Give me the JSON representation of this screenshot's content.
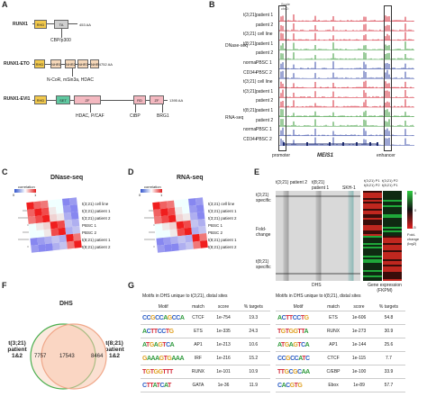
{
  "panels": {
    "A": "A",
    "B": "B",
    "C": "C",
    "D": "D",
    "E": "E",
    "F": "F",
    "G": "G"
  },
  "panelA": {
    "proteins": [
      {
        "name": "RUNX1",
        "length": "453 AA",
        "domains": [
          "RHD",
          "TA"
        ],
        "notes": [
          "CBP/p300"
        ]
      },
      {
        "name": "RUNX1-ETO",
        "length": "752 AA",
        "domains": [
          "RHD",
          "NHR1",
          "NHR2",
          "NHR3",
          "NHR4"
        ],
        "notes": [
          "N-CoR, mSin3a, HDAC"
        ]
      },
      {
        "name": "RUNX1-EVI1",
        "length": "1395 AA",
        "domains": [
          "RHD",
          "SET",
          "ZF",
          "RD",
          "ZF"
        ],
        "notes": [
          "HDAC, P/CAF",
          "CtBP",
          "BRG1"
        ]
      }
    ]
  },
  "panelB": {
    "header": [
      "Scale",
      "chr2:",
      "hg19"
    ],
    "dnase_label": "DNase-seq",
    "rna_label": "RNA-seq",
    "tracks": [
      {
        "group": "t(3;21)",
        "label": "patient 1",
        "color": "#d42b3a"
      },
      {
        "group": "",
        "label": "patient 2",
        "color": "#d42b3a"
      },
      {
        "group": "t(3;21) cell line",
        "label": "",
        "color": "#d42b3a"
      },
      {
        "group": "t(8;21)",
        "label": "patient 1",
        "color": "#3a9a3a"
      },
      {
        "group": "",
        "label": "patient 2",
        "color": "#3a9a3a"
      },
      {
        "group": "normal",
        "label": "PBSC 1",
        "color": "#3b4ea8"
      },
      {
        "group": "CD34+",
        "label": "PBSC 2",
        "color": "#3b4ea8"
      },
      {
        "group": "t(3;21) cell line",
        "label": "",
        "color": "#d42b3a"
      },
      {
        "group": "t(3;21)",
        "label": "patient 1",
        "color": "#d42b3a"
      },
      {
        "group": "",
        "label": "patient 2",
        "color": "#d42b3a"
      },
      {
        "group": "t(8;21)",
        "label": "patient 1",
        "color": "#3a9a3a"
      },
      {
        "group": "",
        "label": "patient 2",
        "color": "#3a9a3a"
      },
      {
        "group": "normal",
        "label": "PBSC 1",
        "color": "#3b4ea8"
      },
      {
        "group": "CD34+",
        "label": "PBSC 2",
        "color": "#3b4ea8"
      }
    ],
    "gene": "MEIS1",
    "promoter": "promoter",
    "enhancer": "enhancer"
  },
  "panelC": {
    "title": "DNase-seq",
    "legend": "correlation",
    "legend_ticks": [
      "0",
      "1"
    ],
    "rows": [
      "t(3;21) cell line",
      "t(3;21) patient 1",
      "t(3;21) patient 2",
      "PBSC 1",
      "PBSC 2",
      "t(8;21) patient 1",
      "t(8;21) patient 2"
    ],
    "cols": [
      "t(3;21) cell line",
      "t(3;21) patient 1",
      "t(3;21) patient 2",
      "PBSC 1",
      "PBSC 2",
      "t(8;21) patient 1",
      "t(8;21) patient 2"
    ]
  },
  "panelD": {
    "title": "RNA-seq",
    "legend": "correlation",
    "legend_ticks": [
      "0",
      "1"
    ],
    "rows": [
      "t(3;21) cell line",
      "t(3;21) patient 1",
      "t(3;21) patient 2",
      "PBSC 1",
      "PBSC 2",
      "t(8;21) patient 1",
      "t(8;21) patient 2"
    ],
    "cols": [
      "t(3;21) cell line",
      "t(3;21) patient 1",
      "t(3;21) patient 2",
      "PBSC 1",
      "PBSC 2",
      "t(8;21) patient 1",
      "t(8;21) patient 2"
    ]
  },
  "panelE": {
    "col_labels": [
      "t(3;21) patient 2",
      "t(8;21) patient 1",
      "SKH-1"
    ],
    "top_label": "t(3;21) specific",
    "mid_label": "Fold-change",
    "bottom_label": "t(8;21) specific",
    "dhs_label": "DHS",
    "expr_cols": [
      "t(3;21) P1",
      "t(8;21) P2"
    ],
    "expr_cols2": [
      "t(3;21) P2",
      "t(8;21) P1"
    ],
    "expr_label": "Gene expression (FKPM)",
    "legend_label": "Fold-change (log2)",
    "legend_ticks": [
      "5",
      "0",
      "-5"
    ]
  },
  "panelF": {
    "title": "DHS",
    "left": "t(3;21) patient 1&2",
    "right": "t(8;21) patient 1&2",
    "left_only": "7757",
    "overlap": "17543",
    "right_only": "8464"
  },
  "panelG": {
    "left": {
      "title": "Motifs in DHS unique to t(3;21), distal sites",
      "headers": [
        "Motif",
        "match",
        "score",
        "% targets"
      ],
      "rows": [
        {
          "logo": "CCGCCAGCCA",
          "match": "CTCF",
          "score": "1e-754",
          "targets": "19.3"
        },
        {
          "logo": "ACTTCCTG",
          "match": "ETS",
          "score": "1e-335",
          "targets": "24.3"
        },
        {
          "logo": "ATGAGTCA",
          "match": "AP1",
          "score": "1e-213",
          "targets": "10.6"
        },
        {
          "logo": "GAAAGTGAAA",
          "match": "IRF",
          "score": "1e-216",
          "targets": "15.2"
        },
        {
          "logo": "TGTGGTTT",
          "match": "RUNX",
          "score": "1e-101",
          "targets": "10.9"
        },
        {
          "logo": "CTTATCAT",
          "match": "GATA",
          "score": "1e-36",
          "targets": "11.9"
        }
      ]
    },
    "right": {
      "title": "Motifs in DHS unique to t(8;21), distal sites",
      "headers": [
        "Motif",
        "match",
        "score",
        "% targets"
      ],
      "rows": [
        {
          "logo": "ACTTCCTG",
          "match": "ETS",
          "score": "1e-606",
          "targets": "54.8"
        },
        {
          "logo": "TGTGGTTA",
          "match": "RUNX",
          "score": "1e-273",
          "targets": "30.9"
        },
        {
          "logo": "ATGAGTCA",
          "match": "AP1",
          "score": "1e-144",
          "targets": "25.6"
        },
        {
          "logo": "CCGCCATC",
          "match": "CTCF",
          "score": "1e-115",
          "targets": "7.7"
        },
        {
          "logo": "TTGCGCAA",
          "match": "C/EBP",
          "score": "1e-100",
          "targets": "33.9"
        },
        {
          "logo": "CACGTG",
          "match": "Ebox",
          "score": "1e-89",
          "targets": "57.7"
        }
      ]
    }
  },
  "colors": {
    "red": "#d42b3a",
    "green": "#3a9a3a",
    "blue": "#3b4ea8",
    "navy": "#1c2a6e",
    "rhd": "#f2c94c",
    "ta": "#cfcfcf",
    "nhr": "#f5d7b8",
    "set": "#5fc8a0",
    "zf": "#f4b8c0",
    "venn_left": "#4caf50",
    "venn_right": "#f7c6ad"
  }
}
